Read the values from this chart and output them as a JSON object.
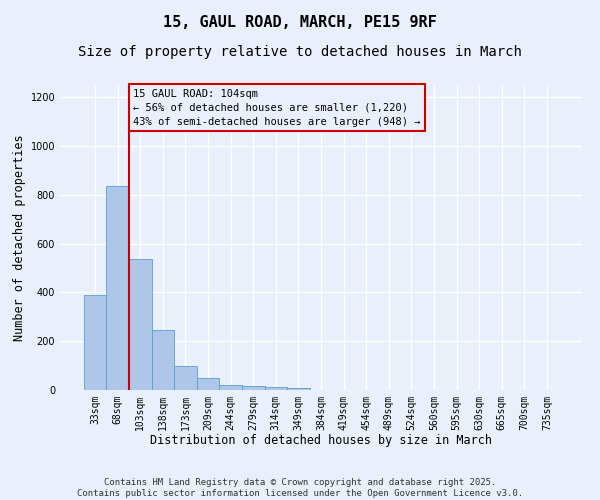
{
  "title_line1": "15, GAUL ROAD, MARCH, PE15 9RF",
  "title_line2": "Size of property relative to detached houses in March",
  "xlabel": "Distribution of detached houses by size in March",
  "ylabel": "Number of detached properties",
  "categories": [
    "33sqm",
    "68sqm",
    "103sqm",
    "138sqm",
    "173sqm",
    "209sqm",
    "244sqm",
    "279sqm",
    "314sqm",
    "349sqm",
    "384sqm",
    "419sqm",
    "454sqm",
    "489sqm",
    "524sqm",
    "560sqm",
    "595sqm",
    "630sqm",
    "665sqm",
    "700sqm",
    "735sqm"
  ],
  "values": [
    390,
    835,
    535,
    245,
    97,
    50,
    20,
    18,
    12,
    8,
    0,
    0,
    0,
    0,
    0,
    0,
    0,
    0,
    0,
    0,
    0
  ],
  "bar_color": "#aec6e8",
  "bar_edge_color": "#5a9fd4",
  "vline_x_idx": 2,
  "vline_color": "#cc0000",
  "annotation_title": "15 GAUL ROAD: 104sqm",
  "annotation_line1": "← 56% of detached houses are smaller (1,220)",
  "annotation_line2": "43% of semi-detached houses are larger (948) →",
  "annotation_box_color": "#cc0000",
  "ylim": [
    0,
    1250
  ],
  "yticks": [
    0,
    200,
    400,
    600,
    800,
    1000,
    1200
  ],
  "footer_line1": "Contains HM Land Registry data © Crown copyright and database right 2025.",
  "footer_line2": "Contains public sector information licensed under the Open Government Licence v3.0.",
  "bg_color": "#eaf0fb",
  "grid_color": "#ffffff",
  "title_fontsize": 11,
  "subtitle_fontsize": 10,
  "axis_label_fontsize": 8.5,
  "tick_fontsize": 7,
  "annotation_fontsize": 7.5,
  "footer_fontsize": 6.5
}
